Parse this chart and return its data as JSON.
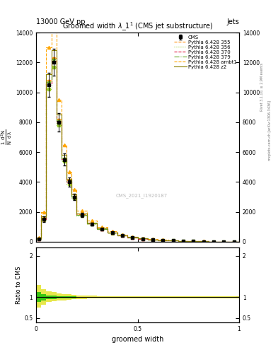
{
  "title": "Groomed width λ_1¹ (CMS jet substructure)",
  "header_left": "13000 GeV pp",
  "header_right": "Jets",
  "xlabel": "groomed width",
  "ratio_ylabel": "Ratio to CMS",
  "watermark": "CMS_2021_I1920187",
  "right_label1": "Rivet 3.1.10, ≥ 2.9M events",
  "right_label2": "mcplots.cern.ch [arXiv:1306.3436]",
  "x_bins": [
    0.0,
    0.025,
    0.05,
    0.075,
    0.1,
    0.125,
    0.15,
    0.175,
    0.2,
    0.25,
    0.3,
    0.35,
    0.4,
    0.45,
    0.5,
    0.55,
    0.6,
    0.65,
    0.7,
    0.75,
    0.8,
    0.85,
    0.9,
    0.95,
    1.0
  ],
  "x_centers": [
    0.0125,
    0.0375,
    0.0625,
    0.0875,
    0.1125,
    0.1375,
    0.1625,
    0.1875,
    0.225,
    0.275,
    0.325,
    0.375,
    0.425,
    0.475,
    0.525,
    0.575,
    0.625,
    0.675,
    0.725,
    0.775,
    0.825,
    0.875,
    0.925,
    0.975
  ],
  "cms_y": [
    200,
    1500,
    10500,
    12000,
    8000,
    5500,
    4000,
    3000,
    1800,
    1200,
    850,
    600,
    430,
    300,
    210,
    150,
    105,
    75,
    50,
    35,
    22,
    14,
    8,
    3
  ],
  "cms_yerr": [
    30,
    200,
    800,
    900,
    600,
    400,
    300,
    220,
    140,
    90,
    65,
    45,
    33,
    23,
    16,
    12,
    8,
    6,
    4,
    3,
    2,
    1.5,
    1,
    0.5
  ],
  "py355_y": [
    220,
    1600,
    10800,
    12300,
    8200,
    5600,
    4100,
    3050,
    1830,
    1220,
    865,
    610,
    435,
    305,
    213,
    152,
    107,
    76,
    51,
    36,
    23,
    15,
    9,
    3.5
  ],
  "py356_y": [
    190,
    1450,
    10200,
    11700,
    7800,
    5400,
    3900,
    2950,
    1770,
    1180,
    835,
    590,
    420,
    295,
    207,
    148,
    103,
    73,
    49,
    34,
    21,
    13,
    7.5,
    2.8
  ],
  "py370_y": [
    205,
    1520,
    10600,
    12100,
    8050,
    5520,
    4020,
    3010,
    1810,
    1210,
    855,
    603,
    432,
    302,
    211,
    151,
    106,
    75.5,
    50.5,
    35.5,
    22.5,
    14.5,
    8.5,
    3.2
  ],
  "py379_y": [
    210,
    1550,
    10700,
    12200,
    8100,
    5560,
    4060,
    3030,
    1820,
    1215,
    860,
    607,
    433,
    303,
    212,
    151.5,
    106.5,
    76,
    51,
    35.8,
    22.8,
    14.8,
    8.8,
    3.3
  ],
  "py_ambt1_y": [
    280,
    2000,
    13000,
    14500,
    9500,
    6500,
    4700,
    3500,
    2100,
    1400,
    980,
    690,
    490,
    340,
    238,
    170,
    119,
    84,
    56,
    39,
    25,
    16,
    9.5,
    3.8
  ],
  "py_z2_y": [
    240,
    1700,
    11200,
    12800,
    8500,
    5800,
    4200,
    3150,
    1890,
    1260,
    890,
    628,
    448,
    314,
    220,
    157,
    110,
    78,
    52,
    37,
    23.5,
    15,
    9,
    3.5
  ],
  "ratio_green_y1": [
    0.88,
    0.92,
    0.95,
    0.96,
    0.97,
    0.97,
    0.98,
    0.98,
    0.99,
    0.99,
    0.99,
    0.995,
    0.995,
    0.995,
    0.995,
    0.995,
    0.995,
    0.995,
    0.995,
    0.995,
    0.995,
    0.995,
    0.995,
    0.995
  ],
  "ratio_green_y2": [
    1.12,
    1.08,
    1.05,
    1.04,
    1.03,
    1.03,
    1.02,
    1.02,
    1.01,
    1.01,
    1.01,
    1.005,
    1.005,
    1.005,
    1.005,
    1.005,
    1.005,
    1.005,
    1.005,
    1.005,
    1.005,
    1.005,
    1.005,
    1.005
  ],
  "ratio_yellow_y1": [
    0.75,
    0.82,
    0.88,
    0.9,
    0.92,
    0.93,
    0.94,
    0.95,
    0.96,
    0.97,
    0.97,
    0.975,
    0.975,
    0.975,
    0.975,
    0.98,
    0.98,
    0.98,
    0.98,
    0.98,
    0.98,
    0.98,
    0.98,
    0.98
  ],
  "ratio_yellow_y2": [
    1.3,
    1.2,
    1.14,
    1.12,
    1.1,
    1.08,
    1.07,
    1.06,
    1.05,
    1.04,
    1.03,
    1.025,
    1.025,
    1.025,
    1.025,
    1.02,
    1.02,
    1.02,
    1.02,
    1.02,
    1.02,
    1.02,
    1.02,
    1.02
  ],
  "colors": {
    "py355": "#ff8c00",
    "py356": "#9acd32",
    "py370": "#dc143c",
    "py379": "#6aaa2a",
    "py_ambt1": "#ffa500",
    "py_z2": "#8b8000",
    "cms": "#000000",
    "green_band": "#00bb00",
    "yellow_band": "#dddd00"
  },
  "ylim_main": [
    0,
    14000
  ],
  "ylim_ratio": [
    0.4,
    2.2
  ],
  "xlim": [
    0,
    1
  ],
  "yticks_main": [
    0,
    2000,
    4000,
    6000,
    8000,
    10000,
    12000,
    14000
  ]
}
